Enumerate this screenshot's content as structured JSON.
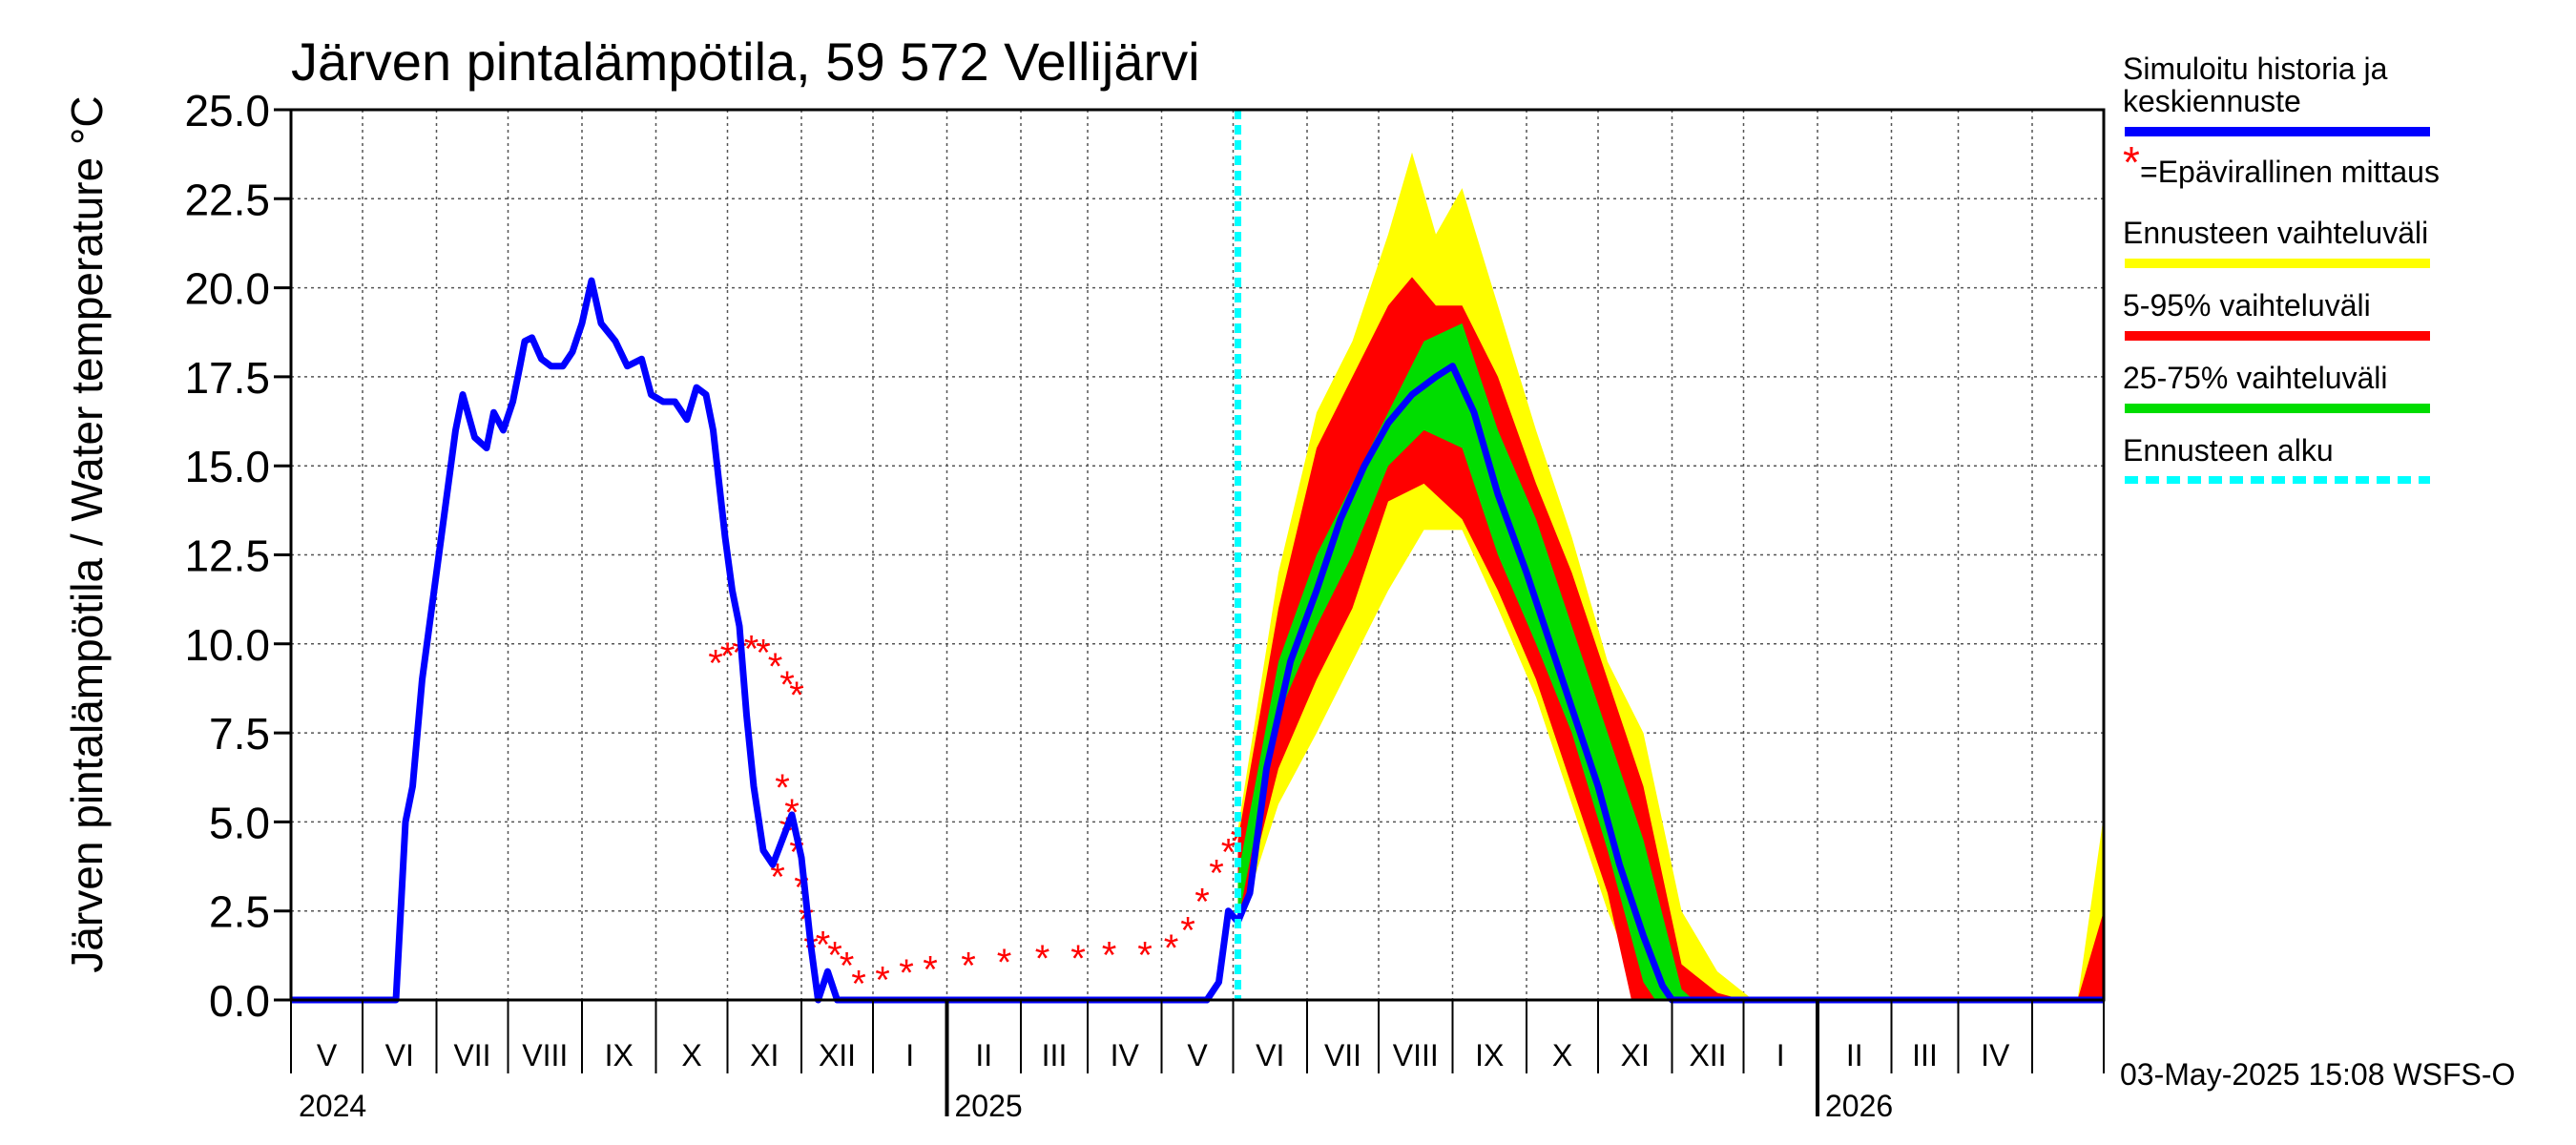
{
  "chart_data": {
    "type": "line",
    "title": "Järven pintalämpötila, 59 572 Vellijärvi",
    "ylabel": "Järven pintalämpötila / Water temperature °C",
    "ylim": [
      0,
      25
    ],
    "yticks": [
      "0.0",
      "2.5",
      "5.0",
      "7.5",
      "10.0",
      "12.5",
      "15.0",
      "17.5",
      "20.0",
      "22.5",
      "25.0"
    ],
    "xlim": [
      "2024-04-01",
      "2026-05-01"
    ],
    "month_labels": [
      "V",
      "VI",
      "VII",
      "VIII",
      "IX",
      "X",
      "XI",
      "XII",
      "I",
      "II",
      "III",
      "IV",
      "V",
      "VI",
      "VII",
      "VIII",
      "IX",
      "X",
      "XI",
      "XII",
      "I",
      "II",
      "III",
      "IV"
    ],
    "year_labels": [
      "2024",
      "2025",
      "2026"
    ],
    "grid": true,
    "forecast_start": "2025-05-03",
    "series": [
      {
        "name": "Simuloitu historia ja keskiennuste",
        "color": "#0000ff",
        "points": [
          [
            "2024-04-01",
            0
          ],
          [
            "2024-05-15",
            0
          ],
          [
            "2024-05-19",
            5
          ],
          [
            "2024-05-22",
            6
          ],
          [
            "2024-05-26",
            9
          ],
          [
            "2024-06-01",
            12
          ],
          [
            "2024-06-05",
            14
          ],
          [
            "2024-06-09",
            16
          ],
          [
            "2024-06-12",
            17
          ],
          [
            "2024-06-17",
            15.8
          ],
          [
            "2024-06-22",
            15.5
          ],
          [
            "2024-06-25",
            16.5
          ],
          [
            "2024-06-29",
            16
          ],
          [
            "2024-07-03",
            16.8
          ],
          [
            "2024-07-06",
            17.8
          ],
          [
            "2024-07-08",
            18.5
          ],
          [
            "2024-07-11",
            18.6
          ],
          [
            "2024-07-15",
            18
          ],
          [
            "2024-07-19",
            17.8
          ],
          [
            "2024-07-24",
            17.8
          ],
          [
            "2024-07-28",
            18.2
          ],
          [
            "2024-08-01",
            19
          ],
          [
            "2024-08-05",
            20.2
          ],
          [
            "2024-08-09",
            19
          ],
          [
            "2024-08-15",
            18.5
          ],
          [
            "2024-08-20",
            17.8
          ],
          [
            "2024-08-26",
            18
          ],
          [
            "2024-08-30",
            17
          ],
          [
            "2024-09-04",
            16.8
          ],
          [
            "2024-09-09",
            16.8
          ],
          [
            "2024-09-14",
            16.3
          ],
          [
            "2024-09-18",
            17.2
          ],
          [
            "2024-09-22",
            17
          ],
          [
            "2024-09-25",
            16
          ],
          [
            "2024-09-30",
            13
          ],
          [
            "2024-10-03",
            11.5
          ],
          [
            "2024-10-06",
            10.5
          ],
          [
            "2024-10-09",
            8
          ],
          [
            "2024-10-12",
            6
          ],
          [
            "2024-10-16",
            4.2
          ],
          [
            "2024-10-20",
            3.8
          ],
          [
            "2024-10-24",
            4.5
          ],
          [
            "2024-10-28",
            5.2
          ],
          [
            "2024-11-01",
            4
          ],
          [
            "2024-11-05",
            1.5
          ],
          [
            "2024-11-08",
            0
          ],
          [
            "2024-11-12",
            0.8
          ],
          [
            "2024-11-16",
            0
          ],
          [
            "2024-12-15",
            0
          ],
          [
            "2025-04-20",
            0
          ],
          [
            "2025-04-25",
            0.5
          ],
          [
            "2025-04-29",
            2.5
          ],
          [
            "2025-05-03",
            2.2
          ],
          [
            "2025-05-08",
            3
          ],
          [
            "2025-05-15",
            6.5
          ],
          [
            "2025-05-25",
            9.5
          ],
          [
            "2025-06-05",
            11.5
          ],
          [
            "2025-06-15",
            13.5
          ],
          [
            "2025-06-25",
            15
          ],
          [
            "2025-07-05",
            16.2
          ],
          [
            "2025-07-15",
            17
          ],
          [
            "2025-07-25",
            17.5
          ],
          [
            "2025-08-01",
            17.8
          ],
          [
            "2025-08-10",
            16.5
          ],
          [
            "2025-08-20",
            14.2
          ],
          [
            "2025-09-01",
            12
          ],
          [
            "2025-09-10",
            10.2
          ],
          [
            "2025-09-20",
            8.2
          ],
          [
            "2025-10-01",
            6
          ],
          [
            "2025-10-10",
            3.8
          ],
          [
            "2025-10-20",
            1.8
          ],
          [
            "2025-10-28",
            0.4
          ],
          [
            "2025-11-01",
            0
          ],
          [
            "2026-05-01",
            0
          ]
        ]
      },
      {
        "name": "=Epävirallinen mittaus",
        "color": "#ff0000",
        "points": [
          [
            "2024-09-26",
            9.5
          ],
          [
            "2024-10-01",
            9.7
          ],
          [
            "2024-10-06",
            9.8
          ],
          [
            "2024-10-11",
            9.9
          ],
          [
            "2024-10-16",
            9.8
          ],
          [
            "2024-10-21",
            9.4
          ],
          [
            "2024-10-26",
            8.9
          ],
          [
            "2024-10-30",
            8.6
          ],
          [
            "2024-10-22",
            3.5
          ],
          [
            "2024-10-24",
            6
          ],
          [
            "2024-10-26",
            4.8
          ],
          [
            "2024-10-28",
            5.3
          ],
          [
            "2024-10-30",
            4.2
          ],
          [
            "2024-11-01",
            3.2
          ],
          [
            "2024-11-03",
            2.3
          ],
          [
            "2024-11-05",
            1.5
          ],
          [
            "2024-11-10",
            1.6
          ],
          [
            "2024-11-15",
            1.3
          ],
          [
            "2024-11-20",
            1
          ],
          [
            "2024-11-25",
            0.5
          ],
          [
            "2024-12-05",
            0.6
          ],
          [
            "2024-12-15",
            0.8
          ],
          [
            "2024-12-25",
            0.9
          ],
          [
            "2025-01-10",
            1
          ],
          [
            "2025-01-25",
            1.1
          ],
          [
            "2025-02-10",
            1.2
          ],
          [
            "2025-02-25",
            1.2
          ],
          [
            "2025-03-10",
            1.3
          ],
          [
            "2025-03-25",
            1.3
          ],
          [
            "2025-04-05",
            1.5
          ],
          [
            "2025-04-12",
            2
          ],
          [
            "2025-04-18",
            2.8
          ],
          [
            "2025-04-24",
            3.6
          ],
          [
            "2025-04-29",
            4.2
          ],
          [
            "2025-05-03",
            4.5
          ]
        ]
      },
      {
        "name": "Ennusteen vaihteluväli",
        "color": "#ffff00",
        "lower": [
          [
            "2025-05-03",
            2
          ],
          [
            "2025-05-20",
            5.5
          ],
          [
            "2025-06-05",
            7.5
          ],
          [
            "2025-06-20",
            9.5
          ],
          [
            "2025-07-05",
            11.5
          ],
          [
            "2025-07-20",
            13.2
          ],
          [
            "2025-08-05",
            13.2
          ],
          [
            "2025-08-20",
            11
          ],
          [
            "2025-09-05",
            8.5
          ],
          [
            "2025-09-20",
            5.5
          ],
          [
            "2025-10-05",
            2.5
          ],
          [
            "2025-10-20",
            0
          ],
          [
            "2026-05-01",
            0
          ]
        ],
        "upper": [
          [
            "2025-05-03",
            4.8
          ],
          [
            "2025-05-20",
            12
          ],
          [
            "2025-06-05",
            16.5
          ],
          [
            "2025-06-20",
            18.5
          ],
          [
            "2025-07-05",
            21.5
          ],
          [
            "2025-07-15",
            23.8
          ],
          [
            "2025-07-25",
            21.5
          ],
          [
            "2025-08-05",
            22.8
          ],
          [
            "2025-08-20",
            19.5
          ],
          [
            "2025-09-05",
            16
          ],
          [
            "2025-09-20",
            13
          ],
          [
            "2025-10-05",
            9.5
          ],
          [
            "2025-10-20",
            7.5
          ],
          [
            "2025-11-05",
            2.5
          ],
          [
            "2025-11-20",
            0.8
          ],
          [
            "2025-12-05",
            0
          ],
          [
            "2026-04-20",
            0
          ],
          [
            "2026-05-01",
            5.2
          ]
        ]
      },
      {
        "name": "5-95% vaihteluväli",
        "color": "#ff0000",
        "lower": [
          [
            "2025-05-03",
            2
          ],
          [
            "2025-05-20",
            6.5
          ],
          [
            "2025-06-05",
            9
          ],
          [
            "2025-06-20",
            11
          ],
          [
            "2025-07-05",
            14
          ],
          [
            "2025-07-20",
            14.5
          ],
          [
            "2025-08-05",
            13.5
          ],
          [
            "2025-08-20",
            11.5
          ],
          [
            "2025-09-05",
            9
          ],
          [
            "2025-09-20",
            6
          ],
          [
            "2025-10-05",
            3
          ],
          [
            "2025-10-15",
            0
          ],
          [
            "2026-05-01",
            0
          ]
        ],
        "upper": [
          [
            "2025-05-03",
            4.5
          ],
          [
            "2025-05-20",
            11
          ],
          [
            "2025-06-05",
            15.5
          ],
          [
            "2025-06-20",
            17.5
          ],
          [
            "2025-07-05",
            19.5
          ],
          [
            "2025-07-15",
            20.3
          ],
          [
            "2025-07-25",
            19.5
          ],
          [
            "2025-08-05",
            19.5
          ],
          [
            "2025-08-20",
            17.5
          ],
          [
            "2025-09-05",
            14.5
          ],
          [
            "2025-09-20",
            12
          ],
          [
            "2025-10-05",
            9
          ],
          [
            "2025-10-20",
            6
          ],
          [
            "2025-11-05",
            1
          ],
          [
            "2025-11-20",
            0.2
          ],
          [
            "2025-12-01",
            0
          ],
          [
            "2026-04-20",
            0
          ],
          [
            "2026-05-01",
            2.5
          ]
        ]
      },
      {
        "name": "25-75% vaihteluväli",
        "color": "#00dd00",
        "lower": [
          [
            "2025-05-03",
            2.2
          ],
          [
            "2025-05-20",
            8
          ],
          [
            "2025-06-05",
            10.5
          ],
          [
            "2025-06-20",
            12.5
          ],
          [
            "2025-07-05",
            15
          ],
          [
            "2025-07-20",
            16
          ],
          [
            "2025-08-05",
            15.5
          ],
          [
            "2025-08-20",
            12.5
          ],
          [
            "2025-09-05",
            10
          ],
          [
            "2025-09-20",
            7.5
          ],
          [
            "2025-10-05",
            4.2
          ],
          [
            "2025-10-20",
            0.5
          ],
          [
            "2025-10-25",
            0
          ],
          [
            "2026-05-01",
            0
          ]
        ],
        "upper": [
          [
            "2025-05-03",
            3.5
          ],
          [
            "2025-05-20",
            9.5
          ],
          [
            "2025-06-05",
            12.5
          ],
          [
            "2025-06-20",
            14.5
          ],
          [
            "2025-07-05",
            16.5
          ],
          [
            "2025-07-20",
            18.5
          ],
          [
            "2025-08-05",
            19
          ],
          [
            "2025-08-20",
            16
          ],
          [
            "2025-09-05",
            13.5
          ],
          [
            "2025-09-20",
            10.5
          ],
          [
            "2025-10-05",
            7.5
          ],
          [
            "2025-10-20",
            4.5
          ],
          [
            "2025-11-05",
            0.3
          ],
          [
            "2025-11-10",
            0
          ],
          [
            "2026-05-01",
            0
          ]
        ]
      },
      {
        "name": "Ennusteen alku",
        "color": "#00ffff"
      }
    ]
  },
  "legend": {
    "items": [
      {
        "label": "Simuloitu historia ja keskiennuste",
        "line1": "Simuloitu historia ja",
        "line2": "keskiennuste",
        "color": "#0000ff"
      },
      {
        "label": "=Epävirallinen mittaus",
        "marker": "*",
        "color": "#ff0000"
      },
      {
        "label": "Ennusteen vaihteluväli",
        "color": "#ffff00"
      },
      {
        "label": "5-95% vaihteluväli",
        "color": "#ff0000"
      },
      {
        "label": "25-75% vaihteluväli",
        "color": "#00dd00"
      },
      {
        "label": "Ennusteen alku",
        "color": "#00ffff"
      }
    ]
  },
  "footer": "03-May-2025 15:08 WSFS-O"
}
